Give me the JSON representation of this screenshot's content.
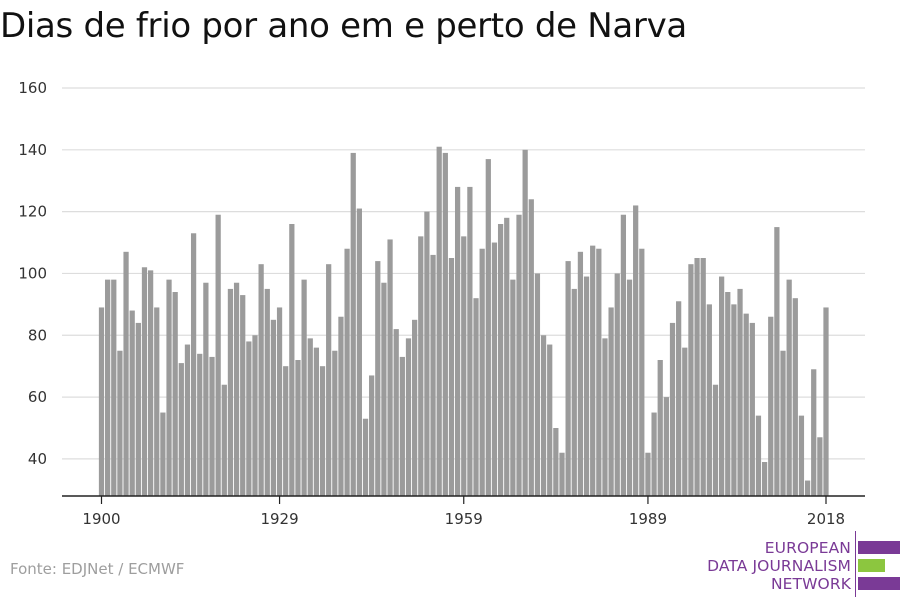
{
  "title": "Dias de frio por ano em e perto de Narva",
  "source": "Fonte: EDJNet / ECMWF",
  "logo": {
    "line1": "EUROPEAN",
    "line2": "DATA JOURNALISM",
    "line3": "NETWORK"
  },
  "colors": {
    "bar": "#9b9b9b",
    "grid": "#dddddd",
    "axis": "#222222",
    "logo_purple": "#7a3a96",
    "logo_green": "#8cc63f"
  },
  "chart_data": {
    "type": "bar",
    "title": "Dias de frio por ano em e perto de Narva",
    "xlabel": "",
    "ylabel": "",
    "ylim": [
      28,
      160
    ],
    "yticks": [
      40,
      60,
      80,
      100,
      120,
      140,
      160
    ],
    "xticks": [
      "1900",
      "1929",
      "1959",
      "1989",
      "2018"
    ],
    "grid": true,
    "years": [
      1900,
      1901,
      1902,
      1903,
      1904,
      1905,
      1906,
      1907,
      1908,
      1909,
      1910,
      1911,
      1912,
      1913,
      1914,
      1915,
      1916,
      1917,
      1918,
      1919,
      1920,
      1921,
      1922,
      1923,
      1924,
      1925,
      1926,
      1927,
      1928,
      1929,
      1930,
      1931,
      1932,
      1933,
      1934,
      1935,
      1936,
      1937,
      1938,
      1939,
      1940,
      1941,
      1942,
      1943,
      1944,
      1945,
      1946,
      1947,
      1948,
      1949,
      1950,
      1951,
      1952,
      1953,
      1954,
      1955,
      1956,
      1957,
      1958,
      1959,
      1960,
      1961,
      1962,
      1963,
      1964,
      1965,
      1966,
      1967,
      1968,
      1969,
      1970,
      1971,
      1972,
      1973,
      1974,
      1975,
      1976,
      1977,
      1978,
      1979,
      1980,
      1981,
      1982,
      1983,
      1984,
      1985,
      1986,
      1987,
      1988,
      1989,
      1990,
      1991,
      1992,
      1993,
      1994,
      1995,
      1996,
      1997,
      1998,
      1999,
      2000,
      2001,
      2002,
      2003,
      2004,
      2005,
      2006,
      2007,
      2008,
      2009,
      2010,
      2011,
      2012,
      2013,
      2014,
      2015,
      2016,
      2017,
      2018
    ],
    "values": [
      89,
      98,
      98,
      75,
      107,
      88,
      84,
      102,
      101,
      89,
      55,
      98,
      94,
      71,
      77,
      113,
      74,
      97,
      73,
      119,
      64,
      95,
      97,
      93,
      78,
      80,
      103,
      95,
      85,
      89,
      70,
      116,
      72,
      98,
      79,
      76,
      70,
      103,
      75,
      86,
      108,
      139,
      121,
      53,
      67,
      104,
      97,
      111,
      82,
      73,
      79,
      85,
      112,
      120,
      106,
      141,
      139,
      105,
      128,
      112,
      128,
      92,
      108,
      137,
      110,
      116,
      118,
      98,
      119,
      140,
      124,
      100,
      80,
      77,
      50,
      42,
      104,
      95,
      107,
      99,
      109,
      108,
      79,
      89,
      100,
      119,
      98,
      122,
      108,
      42,
      55,
      72,
      60,
      84,
      91,
      76,
      103,
      105,
      105,
      90,
      64,
      99,
      94,
      90,
      95,
      87,
      84,
      54,
      39,
      86,
      115,
      75,
      98,
      92,
      54,
      33,
      69,
      47,
      89
    ]
  }
}
